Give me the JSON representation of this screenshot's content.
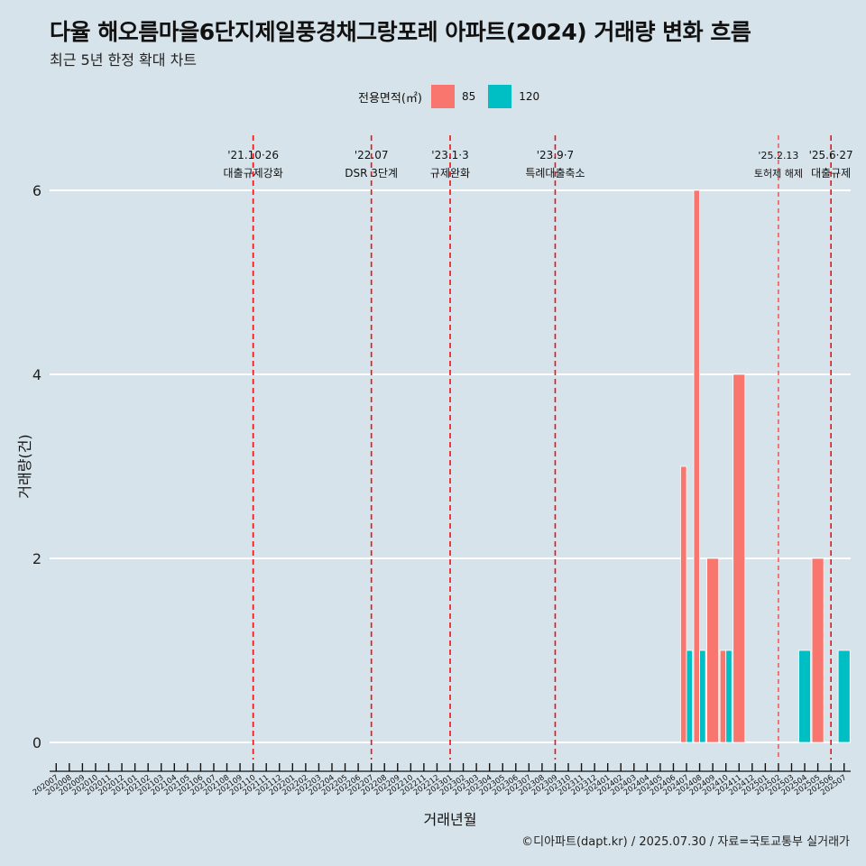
{
  "header": {
    "title": "다율 해오름마을6단지제일풍경채그랑포레 아파트(2024) 거래량 변화 흐름",
    "subtitle": "최근 5년 한정 확대 차트"
  },
  "legend": {
    "title": "전용면적(㎡)",
    "items": [
      {
        "label": "85",
        "color": "#f8766d"
      },
      {
        "label": "120",
        "color": "#00bfc4"
      }
    ]
  },
  "caption": "©디아파트(dapt.kr) / 2025.07.30 / 자료=국토교통부 실거래가",
  "chart_data": {
    "type": "bar",
    "xlabel": "거래년월",
    "ylabel": "거래량(건)",
    "ylim": [
      0,
      6
    ],
    "yticks": [
      0,
      2,
      4,
      6
    ],
    "grid": true,
    "legend_position": "top",
    "categories": [
      "202007",
      "202008",
      "202009",
      "202010",
      "202011",
      "202012",
      "202101",
      "202102",
      "202103",
      "202104",
      "202105",
      "202106",
      "202107",
      "202108",
      "202109",
      "202110",
      "202111",
      "202112",
      "202201",
      "202202",
      "202203",
      "202204",
      "202205",
      "202206",
      "202207",
      "202208",
      "202209",
      "202210",
      "202211",
      "202212",
      "202301",
      "202302",
      "202303",
      "202304",
      "202305",
      "202306",
      "202307",
      "202308",
      "202309",
      "202310",
      "202311",
      "202312",
      "202401",
      "202402",
      "202403",
      "202404",
      "202405",
      "202406",
      "202407",
      "202408",
      "202409",
      "202410",
      "202411",
      "202412",
      "202501",
      "202502",
      "202503",
      "202504",
      "202505",
      "202506",
      "202507"
    ],
    "series": [
      {
        "name": "85",
        "color": "#f8766d",
        "data": [
          [
            "202407",
            3
          ],
          [
            "202408",
            6
          ],
          [
            "202409",
            2
          ],
          [
            "202410",
            1
          ],
          [
            "202411",
            4
          ],
          [
            "202505",
            2
          ]
        ]
      },
      {
        "name": "120",
        "color": "#00bfc4",
        "data": [
          [
            "202407",
            1
          ],
          [
            "202408",
            1
          ],
          [
            "202410",
            1
          ],
          [
            "202504",
            1
          ],
          [
            "202507",
            1
          ]
        ]
      }
    ],
    "events": [
      {
        "month": "202110",
        "date": "'21.10·26",
        "label": "대출규제강화",
        "style": "dashed"
      },
      {
        "month": "202207",
        "date": "'22.07",
        "label": "DSR 3단계",
        "style": "dashed"
      },
      {
        "month": "202301",
        "date": "'23.1·3",
        "label": "규제완화",
        "style": "dashed"
      },
      {
        "month": "202309",
        "date": "'23.9·7",
        "label": "특례대출축소",
        "style": "dashed"
      },
      {
        "month": "202502",
        "date": "'25.2.13",
        "label": "토허제 해제",
        "style": "thin"
      },
      {
        "month": "202506",
        "date": "'25.6·27",
        "label": "대출규제",
        "style": "dashed"
      }
    ]
  }
}
